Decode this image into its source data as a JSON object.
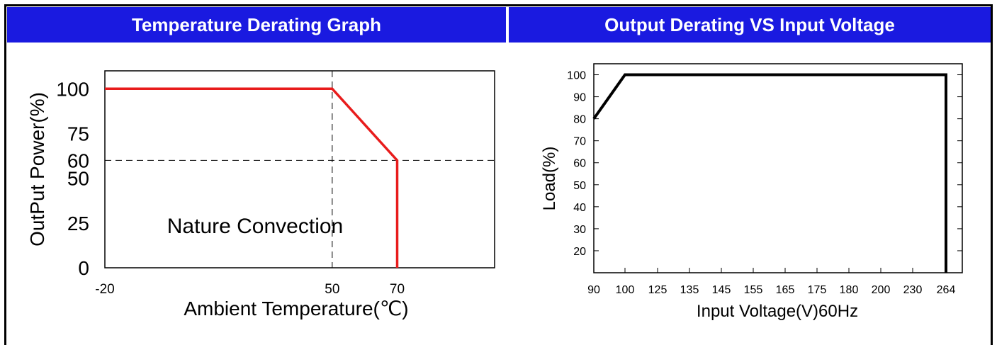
{
  "headers": {
    "left": "Temperature Derating Graph",
    "right": "Output Derating VS Input Voltage"
  },
  "colors": {
    "header_bg": "#1a1ae0",
    "left_series": "#e81c1c",
    "right_series": "#000000"
  },
  "chart_data": [
    {
      "type": "line",
      "title": "Temperature Derating Graph",
      "xlabel": "Ambient Temperature(℃)",
      "ylabel": "OutPut Power(%)",
      "xlim": [
        -20,
        100
      ],
      "ylim": [
        0,
        110
      ],
      "x_ticks": [
        -20,
        50,
        70
      ],
      "y_ticks": [
        0,
        25,
        50,
        60,
        75,
        100
      ],
      "grid": false,
      "reference_lines": {
        "vertical_x": 50,
        "horizontal_y": 60
      },
      "annotation": "Nature Convection",
      "series": [
        {
          "x": [
            -20,
            50,
            70,
            70
          ],
          "y": [
            100,
            100,
            60,
            0
          ]
        }
      ]
    },
    {
      "type": "line",
      "title": "Output Derating VS Input Voltage",
      "xlabel": "Input Voltage(V)60Hz",
      "ylabel": "Load(%)",
      "categories": [
        "90",
        "100",
        "125",
        "135",
        "145",
        "155",
        "165",
        "175",
        "180",
        "200",
        "230",
        "264"
      ],
      "ylim": [
        10,
        105
      ],
      "y_ticks": [
        20,
        30,
        40,
        50,
        60,
        70,
        80,
        90,
        100
      ],
      "grid": false,
      "series": [
        {
          "points": [
            [
              "90",
              80
            ],
            [
              "100",
              100
            ],
            [
              "264",
              100
            ],
            [
              "264",
              10
            ]
          ]
        }
      ]
    }
  ]
}
